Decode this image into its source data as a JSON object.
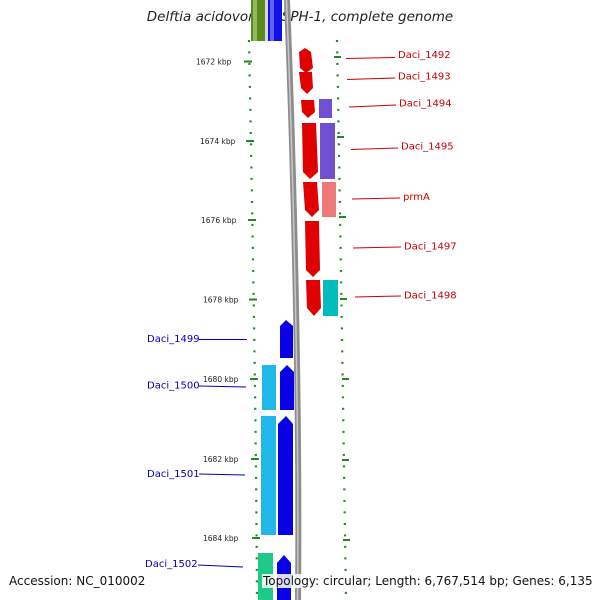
{
  "title": "Delftia acidovorans SPH-1, complete genome",
  "footer": {
    "accession": "Accession: NC_010002",
    "summary": "Topology: circular; Length: 6,767,514 bp; Genes: 6,135"
  },
  "colors": {
    "forward_genes": "#e00000",
    "forward_labels": "#cc0000",
    "reverse_genes": "#0a00e6",
    "reverse_labels": "#0000bb",
    "cyan_genes": "#20b8e8",
    "teal_gene": "#00bcbc",
    "purple_gene": "#7050d0",
    "salmon_gene": "#ee7878",
    "dots": "#1f8a1f",
    "backbone": "#8c8c8c"
  },
  "scale": {
    "unit": "kbp",
    "ticks": [
      "1672 kbp",
      "1674 kbp",
      "1676 kbp",
      "1678 kbp",
      "1680 kbp",
      "1682 kbp",
      "1684 kbp"
    ]
  },
  "genes_forward": [
    {
      "label": "Daci_1492"
    },
    {
      "label": "Daci_1493"
    },
    {
      "label": "Daci_1494"
    },
    {
      "label": "Daci_1495"
    },
    {
      "label": "prmA"
    },
    {
      "label": "Daci_1497"
    },
    {
      "label": "Daci_1498"
    }
  ],
  "genes_reverse": [
    {
      "label": "Daci_1499"
    },
    {
      "label": "Daci_1500"
    },
    {
      "label": "Daci_1501"
    },
    {
      "label": "Daci_1502"
    }
  ]
}
